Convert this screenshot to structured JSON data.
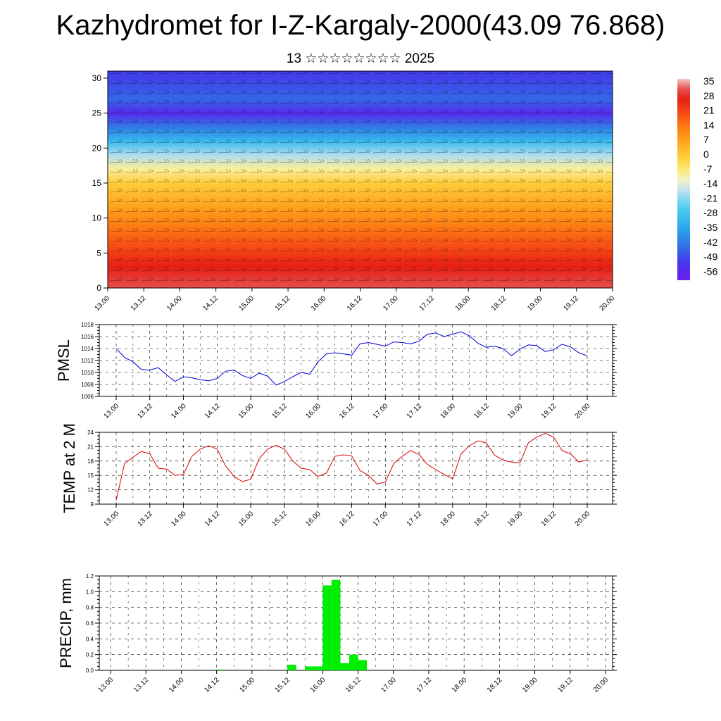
{
  "title": "Kazhydromet for I-Z-Kargaly-2000(43.09 76.868)",
  "subtitle": "13 ☆☆☆☆☆☆☆☆ 2025",
  "colors": {
    "pressure_line": "#0000dd",
    "temp_line": "#dd0000",
    "precip_bar": "#00ee00"
  },
  "x_tick_labels": [
    "13.00",
    "13.12",
    "14.00",
    "14.12",
    "15.00",
    "15.12",
    "16.00",
    "16.12",
    "17.00",
    "17.12",
    "18.00",
    "18.12",
    "19.00",
    "19.12",
    "20.00"
  ],
  "chart_data": [
    {
      "type": "heatmap",
      "title": "",
      "xlabel": "",
      "ylabel": "",
      "ylim": [
        0,
        31
      ],
      "y_ticks": [
        0,
        5,
        10,
        15,
        20,
        25,
        30
      ],
      "colorbar_labels": [
        "35",
        "28",
        "21",
        "14",
        "7",
        "0",
        "-7",
        "-14",
        "-21",
        "-28",
        "-35",
        "-42",
        "-49",
        "-56"
      ],
      "colorbar_range": [
        -60,
        38
      ],
      "temperature_by_height": {
        "heights": [
          0,
          3,
          6,
          9,
          12,
          15,
          17,
          19,
          21,
          23,
          25,
          27,
          30
        ],
        "values": [
          33,
          28,
          21,
          14,
          7,
          0,
          -8,
          -18,
          -30,
          -42,
          -55,
          -45,
          -50
        ]
      }
    },
    {
      "type": "line",
      "title": "",
      "xlabel": "",
      "ylabel": "PMSL",
      "ylim": [
        1006,
        1018
      ],
      "y_ticks": [
        1006,
        1008,
        1010,
        1012,
        1014,
        1016,
        1018
      ],
      "series": [
        {
          "values": [
            1014.0,
            1012.5,
            1011.8,
            1010.5,
            1010.4,
            1010.8,
            1009.6,
            1008.5,
            1009.3,
            1009.1,
            1008.8,
            1008.6,
            1009.0,
            1010.2,
            1010.4,
            1009.5,
            1009.0,
            1009.9,
            1009.4,
            1007.9,
            1008.5,
            1009.3,
            1010.0,
            1009.7,
            1011.8,
            1013.1,
            1013.3,
            1013.1,
            1012.9,
            1014.8,
            1015.0,
            1014.7,
            1014.4,
            1015.1,
            1015.0,
            1014.8,
            1015.2,
            1016.4,
            1016.6,
            1016.0,
            1016.4,
            1016.8,
            1016.1,
            1014.9,
            1014.2,
            1014.4,
            1014.0,
            1012.8,
            1013.9,
            1014.6,
            1014.5,
            1013.5,
            1013.8,
            1014.7,
            1014.3,
            1013.3,
            1012.8
          ]
        }
      ]
    },
    {
      "type": "line",
      "title": "",
      "xlabel": "",
      "ylabel": "TEMP at 2 M",
      "ylim": [
        9,
        24
      ],
      "y_ticks": [
        9,
        12,
        15,
        18,
        21,
        24
      ],
      "series": [
        {
          "values": [
            9.8,
            17.5,
            18.8,
            20.0,
            19.5,
            16.5,
            16.3,
            15.0,
            15.2,
            19.0,
            20.5,
            21.2,
            20.5,
            17.0,
            14.8,
            13.7,
            14.2,
            18.5,
            20.5,
            21.3,
            20.5,
            18.0,
            16.5,
            16.2,
            14.8,
            15.5,
            19.0,
            19.3,
            19.1,
            16.0,
            15.0,
            13.2,
            13.6,
            17.5,
            19.0,
            20.2,
            19.4,
            17.3,
            16.2,
            15.2,
            14.3,
            19.5,
            21.2,
            22.2,
            21.8,
            19.2,
            18.2,
            17.8,
            17.6,
            21.8,
            23.0,
            23.8,
            23.0,
            20.2,
            19.5,
            17.8,
            18.2
          ]
        }
      ]
    },
    {
      "type": "bar",
      "title": "",
      "xlabel": "",
      "ylabel": "PRECIP, mm",
      "ylim": [
        0,
        1.2
      ],
      "y_ticks": [
        "0.0",
        "0.2",
        "0.4",
        "0.6",
        "0.8",
        "1.0",
        "1.2"
      ],
      "series": [
        {
          "values": [
            0,
            0,
            0,
            0,
            0,
            0,
            0,
            0,
            0,
            0,
            0,
            0,
            0.01,
            0,
            0,
            0,
            0,
            0,
            0,
            0,
            0.07,
            0,
            0.05,
            0.05,
            1.08,
            1.15,
            0.09,
            0.2,
            0.13,
            0,
            0,
            0,
            0,
            0,
            0,
            0,
            0,
            0,
            0,
            0,
            0,
            0,
            0,
            0,
            0,
            0,
            0,
            0,
            0,
            0,
            0,
            0,
            0,
            0,
            0,
            0
          ]
        }
      ]
    }
  ]
}
